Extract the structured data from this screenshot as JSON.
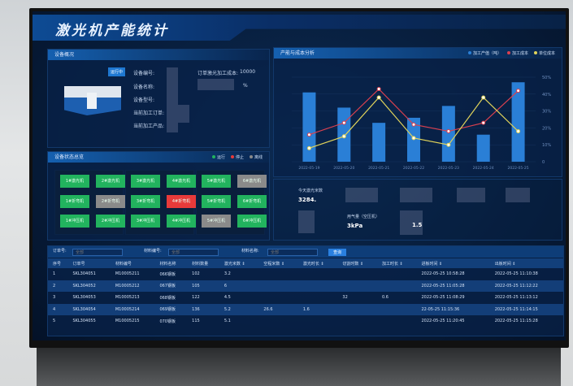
{
  "title": "激光机产能统计",
  "device_overview": {
    "header": "设备概况",
    "status_badge": "运行中",
    "fields": [
      "设备编号:",
      "设备名称:",
      "设备型号:",
      "当前加工订单:",
      "当前加工产品:"
    ],
    "cost_label": "订单激光加工成本:",
    "cost_value": "10000",
    "percent_suffix": "%"
  },
  "device_status": {
    "header": "设备状态总览",
    "legend": [
      {
        "label": "运行",
        "color": "#22b35e"
      },
      {
        "label": "停止",
        "color": "#e83a3a"
      },
      {
        "label": "离线",
        "color": "#8a8a8a"
      }
    ],
    "groups": [
      [
        {
          "name": "1#激光机",
          "status": "run"
        },
        {
          "name": "2#激光机",
          "status": "run"
        },
        {
          "name": "1#折弯机",
          "status": "run"
        },
        {
          "name": "2#折弯机",
          "status": "off"
        },
        {
          "name": "1#冲压机",
          "status": "run"
        },
        {
          "name": "2#冲压机",
          "status": "run"
        }
      ],
      [
        {
          "name": "3#激光机",
          "status": "run"
        },
        {
          "name": "4#激光机",
          "status": "run"
        },
        {
          "name": "3#折弯机",
          "status": "run"
        },
        {
          "name": "4#折弯机",
          "status": "stop"
        },
        {
          "name": "3#冲压机",
          "status": "run"
        },
        {
          "name": "4#冲压机",
          "status": "run"
        }
      ],
      [
        {
          "name": "5#激光机",
          "status": "run"
        },
        {
          "name": "6#激光机",
          "status": "off"
        },
        {
          "name": "5#折弯机",
          "status": "run"
        },
        {
          "name": "6#折弯机",
          "status": "run"
        },
        {
          "name": "5#冲压机",
          "status": "off"
        },
        {
          "name": "6#冲压机",
          "status": "run"
        }
      ]
    ]
  },
  "chart_data": {
    "type": "bar",
    "title": "产能与成本分析",
    "categories": [
      "2022-05-19",
      "2022-05-20",
      "2022-05-21",
      "2022-05-22",
      "2022-05-23",
      "2022-05-24",
      "2022-05-25"
    ],
    "series": [
      {
        "name": "加工产值（吨）",
        "type": "bar",
        "axis": "left",
        "color": "#2a7fd6",
        "values": [
          4.1,
          3.2,
          2.3,
          2.6,
          3.3,
          1.6,
          4.7
        ]
      },
      {
        "name": "加工成本",
        "type": "line",
        "axis": "right",
        "color": "#d9404f",
        "values": [
          16,
          23,
          43,
          22,
          18,
          23,
          42
        ]
      },
      {
        "name": "单位成本",
        "type": "line",
        "axis": "right",
        "color": "#e0d35a",
        "values": [
          8,
          15,
          38,
          14,
          10,
          38,
          18
        ]
      }
    ],
    "ylim_left": [
      0,
      5
    ],
    "ylim_right": [
      0,
      50
    ],
    "right_ticks": [
      "0",
      "10%",
      "20%",
      "30%",
      "40%",
      "50%"
    ],
    "legend": "top-right",
    "grid": true
  },
  "stats": {
    "today_laser_label": "今天激光米数",
    "today_laser_value": "3284.",
    "gas_label": "用气量（空压机）",
    "gas_value": "3kPa",
    "other_value": "1.5"
  },
  "filters": {
    "order_label": "订单号:",
    "material_code_label": "材料编号:",
    "material_name_label": "材料名称:",
    "placeholder": "全部",
    "query": "查询"
  },
  "table": {
    "headers": [
      "序号",
      "订单号",
      "材料编号",
      "材料名称",
      "材料数量",
      "激光米数 ⇕",
      "空程米数 ⇕",
      "激光时长 ⇕",
      "切割时数 ⇕",
      "加工时长 ⇕",
      "进板时间 ⇕",
      "出板时间 ⇕"
    ],
    "rows": [
      [
        "1",
        "SKL304051",
        "M10005211",
        "066钢板",
        "102",
        "3.2",
        "",
        "",
        "",
        "",
        "2022-05-25 10:58:28",
        "2022-05-25 11:10:38"
      ],
      [
        "2",
        "SKL304052",
        "M10005212",
        "067钢板",
        "105",
        "6",
        "",
        "",
        "",
        "",
        "2022-05-25 11:05:28",
        "2022-05-25 11:12:22"
      ],
      [
        "3",
        "SKL304053",
        "M10005213",
        "068钢板",
        "122",
        "4.5",
        "",
        "",
        "32",
        "0.6",
        "2022-05-25 11:08:29",
        "2022-05-25 11:13:12"
      ],
      [
        "4",
        "SKL304054",
        "M10005214",
        "069钢板",
        "136",
        "5.2",
        "26.6",
        "1.6",
        "",
        "",
        "22-05-25 11:15:36",
        "2022-05-25 11:14:15"
      ],
      [
        "5",
        "SKL304055",
        "M10005215",
        "070钢板",
        "115",
        "5.1",
        "",
        "",
        "",
        "",
        "2022-05-25 11:20:45",
        "2022-05-25 11:15:28"
      ]
    ]
  }
}
